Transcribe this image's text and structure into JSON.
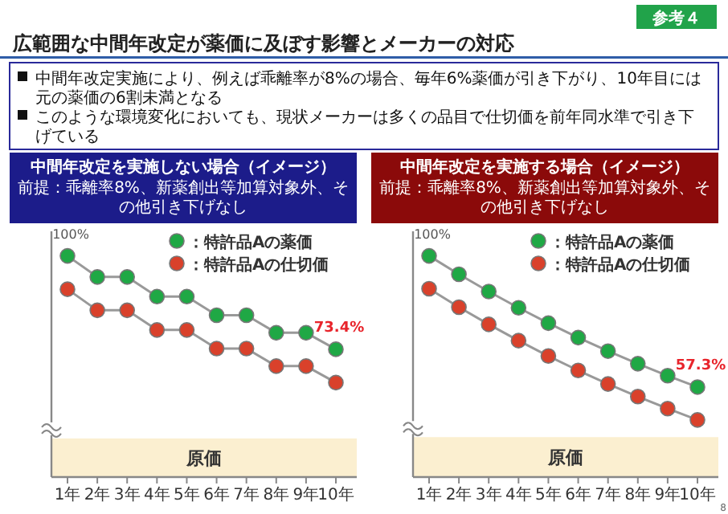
{
  "chart_data": [
    {
      "type": "other",
      "title": "広範囲な中間年改定が薬価に及ぼす影響とメーカーの対応",
      "annotations": [
        "参考４",
        "中間年改定実施により、例えば乖離率が8%の場合、毎年6%薬価が引き下がり、10年目には元の薬価の6割未満となる",
        "このような環境変化においても、現状メーカーは多くの品目で仕切価を前年同水準で引き下げている",
        "8"
      ]
    },
    {
      "type": "line",
      "title": "中間年改定を実施しない場合（イメージ）",
      "subtitle": "前提：乖離率8%、新薬創出等加算対象外、その他引き下げなし",
      "categories": [
        "1年",
        "2年",
        "3年",
        "4年",
        "5年",
        "6年",
        "7年",
        "8年",
        "9年",
        "10年"
      ],
      "series": [
        {
          "name": "：特許品Aの薬価",
          "color": "#1fa845",
          "values": [
            100,
            94,
            94,
            88.4,
            88.4,
            83.1,
            83.1,
            78.1,
            78.1,
            73.4
          ],
          "value_labels": [
            "100%",
            null,
            null,
            null,
            null,
            null,
            null,
            null,
            null,
            "73.4%"
          ]
        },
        {
          "name": "：特許品Aの仕切価",
          "color": "#d9412b",
          "values": [
            90.5,
            84.5,
            84.5,
            78.9,
            78.9,
            73.6,
            73.6,
            68.6,
            68.6,
            63.9
          ]
        }
      ],
      "ylim": [
        37,
        107
      ],
      "bands": [
        {
          "axis": "y",
          "from": 37,
          "to": 48,
          "label": "原価",
          "color": "#fbefd0"
        }
      ],
      "legend": "top right",
      "marker": "circle"
    },
    {
      "type": "line",
      "title": "中間年改定を実施する場合（イメージ）",
      "subtitle": "前提：乖離率8%、新薬創出等加算対象外、その他引き下げなし",
      "categories": [
        "1年",
        "2年",
        "3年",
        "4年",
        "5年",
        "6年",
        "7年",
        "8年",
        "9年",
        "10年"
      ],
      "series": [
        {
          "name": "：特許品Aの薬価",
          "color": "#1fa845",
          "values": [
            100,
            94,
            88.4,
            83.1,
            78.1,
            73.4,
            69,
            64.9,
            61,
            57.3
          ],
          "value_labels": [
            "100%",
            null,
            null,
            null,
            null,
            null,
            null,
            null,
            null,
            "57.3%"
          ]
        },
        {
          "name": "：特許品Aの仕切価",
          "color": "#d9412b",
          "values": [
            89.3,
            83.3,
            77.7,
            72.4,
            67.4,
            62.7,
            58.3,
            54.2,
            50.3,
            46.6
          ]
        }
      ],
      "ylim": [
        28,
        108
      ],
      "bands": [
        {
          "axis": "y",
          "from": 28,
          "to": 41,
          "label": "原価",
          "color": "#fbefd0"
        }
      ],
      "legend": "top right",
      "marker": "circle"
    }
  ]
}
